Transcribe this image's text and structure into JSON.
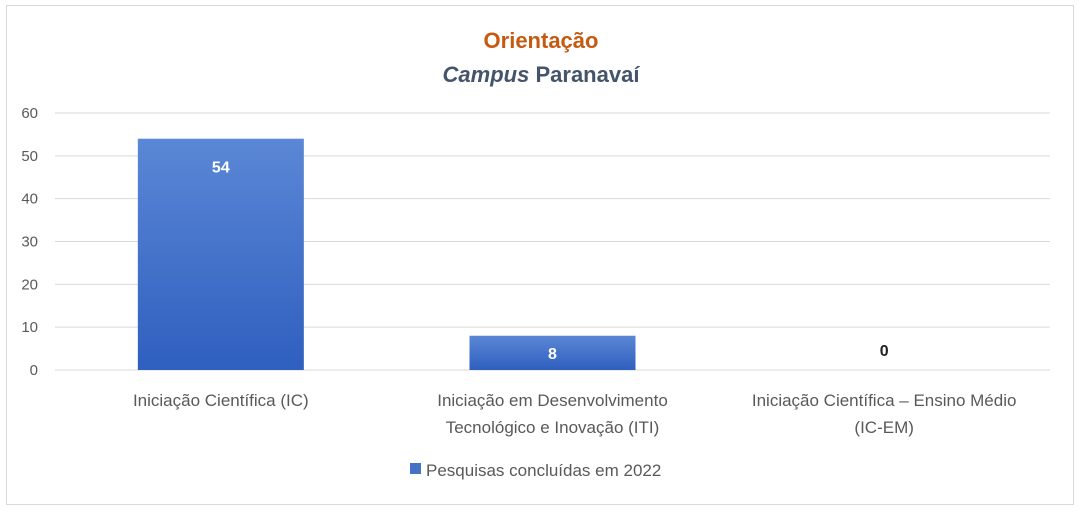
{
  "chart_data": {
    "type": "bar",
    "title_line1": "Orientação",
    "title_line2_italic": "Campus",
    "title_line2_rest": "Paranavaí",
    "categories": [
      [
        "Iniciação Científica (IC)"
      ],
      [
        "Iniciação em Desenvolvimento",
        "Tecnológico e Inovação (ITI)"
      ],
      [
        "Iniciação Científica – Ensino Médio",
        "(IC-EM)"
      ]
    ],
    "series": [
      {
        "name": "Pesquisas concluídas em 2022",
        "values": [
          54,
          8,
          0
        ]
      }
    ],
    "ylim": [
      0,
      60
    ],
    "yticks": [
      0,
      10,
      20,
      30,
      40,
      50,
      60
    ],
    "grid": true,
    "legend_position": "bottom",
    "colors": {
      "bar_top": "#5b87d6",
      "bar_bottom": "#2f5fbf",
      "legend": "#4472c4",
      "grid": "#d9d9d9"
    }
  }
}
